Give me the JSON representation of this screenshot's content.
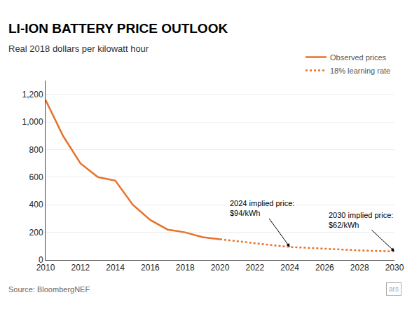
{
  "chart_data": {
    "type": "line",
    "title": "LI-ION BATTERY PRICE OUTLOOK",
    "subtitle": "Real 2018 dollars per kilowatt hour",
    "source": "Source: BloombergNEF",
    "watermark": "ars",
    "series": [
      {
        "name": "Observed prices",
        "color": "#E8722A",
        "line_style": "solid",
        "x": [
          2010,
          2011,
          2012,
          2013,
          2014,
          2015,
          2016,
          2017,
          2018,
          2019,
          2020
        ],
        "values": [
          1160,
          900,
          700,
          600,
          575,
          400,
          290,
          220,
          200,
          165,
          150
        ]
      },
      {
        "name": "18% learning rate",
        "color": "#E8722A",
        "line_style": "dotted",
        "x": [
          2020,
          2021,
          2022,
          2023,
          2024,
          2025,
          2026,
          2027,
          2028,
          2029,
          2030
        ],
        "values": [
          150,
          135,
          120,
          107,
          94,
          87,
          80,
          74,
          69,
          65,
          62
        ]
      }
    ],
    "xlim": [
      2010,
      2030
    ],
    "xticks": [
      2010,
      2012,
      2014,
      2016,
      2018,
      2020,
      2022,
      2024,
      2026,
      2028,
      2030
    ],
    "ylim": [
      0,
      1300
    ],
    "yticks": [
      0,
      200,
      400,
      600,
      800,
      {
        "value": 1000,
        "label": "1,000"
      },
      {
        "value": 1200,
        "label": "1,200"
      }
    ],
    "grid": "y",
    "legend": "upper right",
    "annotations": [
      {
        "text": "2024 implied price:\n$94/kWh",
        "x": 2024,
        "y": 94
      },
      {
        "text": "2030 implied price:\n$62/kWh",
        "x": 2030,
        "y": 62
      }
    ]
  }
}
